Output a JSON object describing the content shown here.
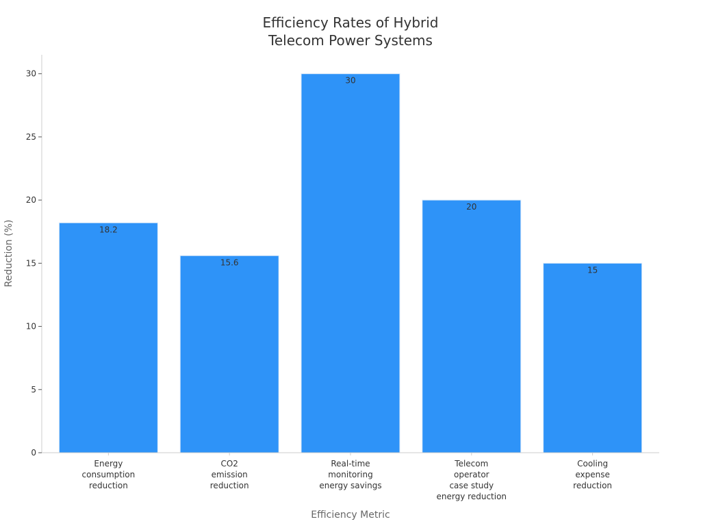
{
  "chart_data": {
    "type": "bar",
    "title_lines": [
      "Efficiency Rates of Hybrid",
      "Telecom Power Systems"
    ],
    "categories": [
      [
        "Energy",
        "consumption",
        "reduction"
      ],
      [
        "CO2",
        "emission",
        "reduction"
      ],
      [
        "Real-time",
        "monitoring",
        "energy savings"
      ],
      [
        "Telecom",
        "operator",
        "case study",
        "energy reduction"
      ],
      [
        "Cooling",
        "expense",
        "reduction"
      ]
    ],
    "values": [
      18.2,
      15.6,
      30,
      20,
      15
    ],
    "data_labels": [
      "18.2",
      "15.6",
      "30",
      "20",
      "15"
    ],
    "xlabel": "Efficiency Metric",
    "ylabel": "Reduction (%)",
    "ylim": [
      0,
      31.5
    ],
    "yticks": [
      0,
      5,
      10,
      15,
      20,
      25,
      30
    ],
    "grid": false,
    "bar_color": "#2e93f8",
    "bar_edge_color": "#d9e9f9"
  }
}
